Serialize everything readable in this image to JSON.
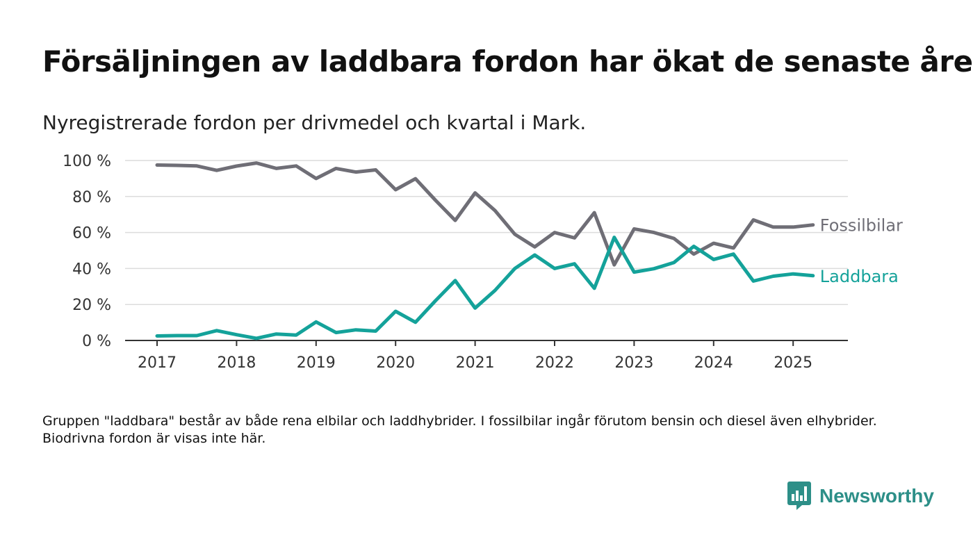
{
  "header": {
    "title": "Försäljningen av laddbara fordon har ökat de senaste åren",
    "subtitle": "Nyregistrerade fordon per drivmedel och kvartal i Mark."
  },
  "footnote": "Gruppen \"laddbara\" består av både rena elbilar och laddhybrider. I fossilbilar ingår förutom bensin och diesel även elhybrider. Biodrivna fordon är visas inte här.",
  "brand": {
    "name": "Newsworthy",
    "logo_icon": "bar-chart-speech-bubble-icon",
    "color": "#2d8f88"
  },
  "chart_data": {
    "type": "line",
    "title": "Försäljningen av laddbara fordon har ökat de senaste åren",
    "subtitle": "Nyregistrerade fordon per drivmedel och kvartal i Mark.",
    "xlabel": "",
    "ylabel": "",
    "x_unit": "quarter",
    "x": [
      "2017 Q1",
      "2017 Q2",
      "2017 Q3",
      "2017 Q4",
      "2018 Q1",
      "2018 Q2",
      "2018 Q3",
      "2018 Q4",
      "2019 Q1",
      "2019 Q2",
      "2019 Q3",
      "2019 Q4",
      "2020 Q1",
      "2020 Q2",
      "2020 Q3",
      "2020 Q4",
      "2021 Q1",
      "2021 Q2",
      "2021 Q3",
      "2021 Q4",
      "2022 Q1",
      "2022 Q2",
      "2022 Q3",
      "2022 Q4",
      "2023 Q1",
      "2023 Q2",
      "2023 Q3",
      "2023 Q4",
      "2024 Q1",
      "2024 Q2",
      "2024 Q3",
      "2024 Q4",
      "2025 Q1",
      "2025 Q2"
    ],
    "x_ticks": [
      "2017",
      "2018",
      "2019",
      "2020",
      "2021",
      "2022",
      "2023",
      "2024",
      "2025"
    ],
    "y_ticks": [
      "0 %",
      "20 %",
      "40 %",
      "60 %",
      "80 %",
      "100 %"
    ],
    "ylim": [
      0,
      100
    ],
    "y_tick_values": [
      0,
      20,
      40,
      60,
      80,
      100
    ],
    "grid": true,
    "legend": "inline labels at line ends (right)",
    "series": [
      {
        "name": "Fossilbilar",
        "color": "#6f6e76",
        "values": [
          97.5,
          97.3,
          97,
          94.5,
          96.9,
          98.6,
          95.6,
          97,
          90,
          95.6,
          93.6,
          94.8,
          83.8,
          89.9,
          78,
          66.7,
          82,
          72.2,
          59,
          52,
          60,
          57,
          71,
          42,
          62,
          60,
          56.7,
          48,
          54,
          51.4,
          67,
          63,
          63,
          64.2
        ]
      },
      {
        "name": "Laddbara",
        "color": "#14a29a",
        "values": [
          2.5,
          2.7,
          2.7,
          5.5,
          3.2,
          1.2,
          3.6,
          3,
          10.3,
          4.4,
          5.9,
          5.2,
          16.2,
          10.1,
          22,
          33.3,
          18,
          27.8,
          40,
          47.5,
          40,
          42.6,
          29,
          57.3,
          38,
          39.9,
          43.3,
          52.3,
          45,
          48,
          33,
          35.7,
          37,
          36
        ]
      }
    ]
  }
}
